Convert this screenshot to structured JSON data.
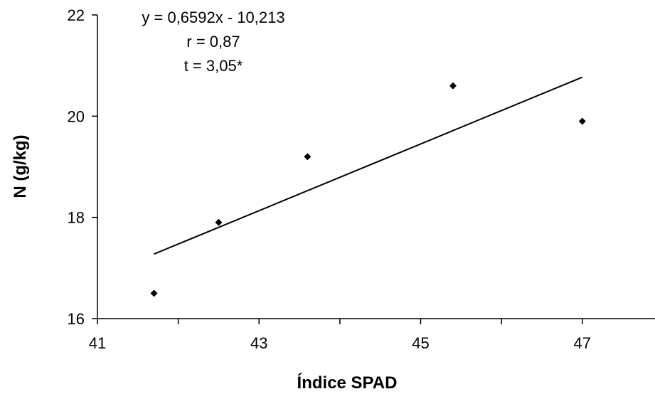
{
  "chart_data": {
    "type": "scatter",
    "title": "",
    "xlabel": "Índice SPAD",
    "ylabel": "N (g/kg)",
    "xlim": [
      41,
      47.9
    ],
    "ylim": [
      16,
      22
    ],
    "xticks": [
      41,
      43,
      45,
      47
    ],
    "yticks": [
      16,
      18,
      20,
      22
    ],
    "x_tick_labels": [
      "41",
      "43",
      "45",
      "47"
    ],
    "y_tick_labels": [
      "16",
      "18",
      "20",
      "22"
    ],
    "grid": false,
    "legend": "none",
    "marker": "diamond",
    "marker_color": "#000000",
    "series": [
      {
        "points": [
          {
            "x": 41.7,
            "y": 16.5
          },
          {
            "x": 42.5,
            "y": 17.9
          },
          {
            "x": 43.6,
            "y": 19.2
          },
          {
            "x": 45.4,
            "y": 20.6
          },
          {
            "x": 47.0,
            "y": 19.9
          }
        ]
      }
    ],
    "trendline": {
      "type": "linear",
      "x_range": [
        41.7,
        47.0
      ],
      "equation": "y = 0,6592x - 10,213"
    },
    "annotations": [
      "y = 0,6592x - 10,213",
      "r = 0,87",
      "t = 3,05*"
    ]
  }
}
